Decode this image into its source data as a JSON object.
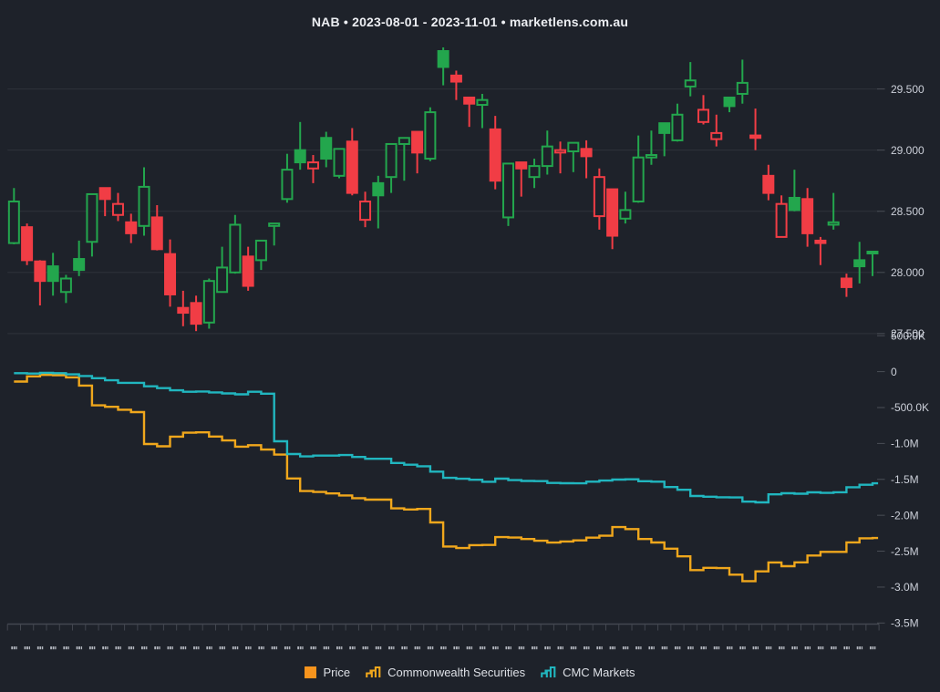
{
  "title": "NAB • 2023-08-01 - 2023-11-01 • marketlens.com.au",
  "colors": {
    "background": "#1e222a",
    "grid": "#2e333b",
    "axis_line": "#434750",
    "axis_text": "#ccd0d9",
    "title_text": "#eceef2",
    "legend_text": "#dde0e6",
    "candle_up": "#23a64d",
    "candle_down": "#f13d45",
    "price_swatch": "#f7941d",
    "cs_line": "#f0a71c",
    "cmc_line": "#21b6bf"
  },
  "legend": {
    "price_label": "Price",
    "cs_label": "Commonwealth Securities",
    "cmc_label": "CMC Markets"
  },
  "chart_data": [
    {
      "type": "candlestick",
      "panel": "price",
      "title": "NAB daily price (hollow = close>open, filled = close<open; green = up vs prev close, red = down)",
      "x": [
        "2023-08-01",
        "2023-08-02",
        "2023-08-03",
        "2023-08-04",
        "2023-08-07",
        "2023-08-08",
        "2023-08-09",
        "2023-08-10",
        "2023-08-11",
        "2023-08-14",
        "2023-08-15",
        "2023-08-16",
        "2023-08-17",
        "2023-08-18",
        "2023-08-21",
        "2023-08-22",
        "2023-08-23",
        "2023-08-24",
        "2023-08-25",
        "2023-08-28",
        "2023-08-29",
        "2023-08-30",
        "2023-08-31",
        "2023-09-01",
        "2023-09-04",
        "2023-09-05",
        "2023-09-06",
        "2023-09-07",
        "2023-09-08",
        "2023-09-11",
        "2023-09-12",
        "2023-09-13",
        "2023-09-14",
        "2023-09-15",
        "2023-09-18",
        "2023-09-19",
        "2023-09-20",
        "2023-09-21",
        "2023-09-22",
        "2023-09-25",
        "2023-09-26",
        "2023-09-27",
        "2023-09-28",
        "2023-09-29",
        "2023-10-02",
        "2023-10-03",
        "2023-10-04",
        "2023-10-05",
        "2023-10-06",
        "2023-10-09",
        "2023-10-10",
        "2023-10-11",
        "2023-10-12",
        "2023-10-13",
        "2023-10-16",
        "2023-10-17",
        "2023-10-18",
        "2023-10-19",
        "2023-10-20",
        "2023-10-23",
        "2023-10-24",
        "2023-10-25",
        "2023-10-26",
        "2023-10-27",
        "2023-10-30",
        "2023-10-31",
        "2023-11-01"
      ],
      "ohlc": [
        [
          28.24,
          28.69,
          28.23,
          28.58
        ],
        [
          28.37,
          28.4,
          28.06,
          28.1
        ],
        [
          28.09,
          28.1,
          27.73,
          27.93
        ],
        [
          28.05,
          28.16,
          27.81,
          27.93
        ],
        [
          27.84,
          27.98,
          27.75,
          27.95
        ],
        [
          28.11,
          28.26,
          27.97,
          28.02
        ],
        [
          28.25,
          28.64,
          28.13,
          28.64
        ],
        [
          28.69,
          28.69,
          28.46,
          28.6
        ],
        [
          28.47,
          28.65,
          28.42,
          28.56
        ],
        [
          28.41,
          28.48,
          28.24,
          28.32
        ],
        [
          28.38,
          28.86,
          28.3,
          28.7
        ],
        [
          28.45,
          28.55,
          28.18,
          28.19
        ],
        [
          28.15,
          28.27,
          27.72,
          27.82
        ],
        [
          27.71,
          27.85,
          27.56,
          27.67
        ],
        [
          27.75,
          27.81,
          27.52,
          27.58
        ],
        [
          27.59,
          27.95,
          27.54,
          27.93
        ],
        [
          27.84,
          28.21,
          27.84,
          28.04
        ],
        [
          28.0,
          28.47,
          27.99,
          28.39
        ],
        [
          28.13,
          28.21,
          27.85,
          27.89
        ],
        [
          28.1,
          28.26,
          28.02,
          28.26
        ],
        [
          28.38,
          28.4,
          28.22,
          28.4
        ],
        [
          28.6,
          28.97,
          28.57,
          28.84
        ],
        [
          29.0,
          29.23,
          28.84,
          28.9
        ],
        [
          28.85,
          28.96,
          28.73,
          28.9
        ],
        [
          29.1,
          29.15,
          28.86,
          28.93
        ],
        [
          28.79,
          29.01,
          28.77,
          29.01
        ],
        [
          29.07,
          29.18,
          28.63,
          28.65
        ],
        [
          28.43,
          28.66,
          28.37,
          28.58
        ],
        [
          28.73,
          28.79,
          28.36,
          28.63
        ],
        [
          28.78,
          29.05,
          28.65,
          29.05
        ],
        [
          29.05,
          29.1,
          28.75,
          29.1
        ],
        [
          29.15,
          29.15,
          28.81,
          28.98
        ],
        [
          28.93,
          29.35,
          28.91,
          29.31
        ],
        [
          29.81,
          29.84,
          29.53,
          29.68
        ],
        [
          29.61,
          29.65,
          29.41,
          29.56
        ],
        [
          29.43,
          29.43,
          29.19,
          29.38
        ],
        [
          29.37,
          29.46,
          29.18,
          29.41
        ],
        [
          29.17,
          29.28,
          28.68,
          28.75
        ],
        [
          28.45,
          28.89,
          28.38,
          28.89
        ],
        [
          28.9,
          28.9,
          28.62,
          28.85
        ],
        [
          28.78,
          28.93,
          28.69,
          28.87
        ],
        [
          28.87,
          29.16,
          28.8,
          29.03
        ],
        [
          28.98,
          29.07,
          28.81,
          29.0
        ],
        [
          28.99,
          29.06,
          28.82,
          29.06
        ],
        [
          29.01,
          29.08,
          28.77,
          28.95
        ],
        [
          28.46,
          28.85,
          28.35,
          28.78
        ],
        [
          28.68,
          28.68,
          28.19,
          28.3
        ],
        [
          28.44,
          28.66,
          28.4,
          28.51
        ],
        [
          28.58,
          29.12,
          28.57,
          28.94
        ],
        [
          28.94,
          29.16,
          28.88,
          28.96
        ],
        [
          29.22,
          29.22,
          28.95,
          29.14
        ],
        [
          29.08,
          29.38,
          29.07,
          29.29
        ],
        [
          29.52,
          29.72,
          29.44,
          29.57
        ],
        [
          29.23,
          29.45,
          29.21,
          29.33
        ],
        [
          29.09,
          29.29,
          29.03,
          29.14
        ],
        [
          29.43,
          29.43,
          29.31,
          29.36
        ],
        [
          29.46,
          29.74,
          29.38,
          29.55
        ],
        [
          29.12,
          29.34,
          29.0,
          29.1
        ],
        [
          28.79,
          28.88,
          28.59,
          28.65
        ],
        [
          28.29,
          28.63,
          28.29,
          28.56
        ],
        [
          28.61,
          28.84,
          28.5,
          28.51
        ],
        [
          28.6,
          28.69,
          28.21,
          28.32
        ],
        [
          28.26,
          28.29,
          28.06,
          28.24
        ],
        [
          28.39,
          28.65,
          28.35,
          28.41
        ],
        [
          27.95,
          27.99,
          27.8,
          27.88
        ],
        [
          28.1,
          28.25,
          27.91,
          28.05
        ],
        [
          28.16,
          28.17,
          27.97,
          28.17
        ]
      ],
      "style": [
        "gh",
        "rs",
        "rs",
        "gs",
        "gh",
        "gs",
        "gh",
        "rs",
        "rh",
        "rs",
        "gh",
        "rs",
        "rs",
        "rs",
        "rs",
        "gh",
        "gh",
        "gh",
        "rs",
        "gh",
        "gh",
        "gh",
        "gs",
        "rh",
        "gs",
        "gh",
        "rs",
        "rh",
        "gs",
        "gh",
        "gh",
        "rs",
        "gh",
        "gs",
        "rs",
        "rs",
        "gh",
        "rs",
        "gh",
        "rs",
        "gh",
        "gh",
        "rh",
        "gh",
        "rs",
        "rh",
        "rs",
        "gh",
        "gh",
        "gh",
        "gs",
        "gh",
        "gh",
        "rh",
        "rh",
        "gs",
        "gh",
        "rs",
        "rs",
        "rh",
        "gs",
        "rs",
        "rs",
        "gh",
        "rs",
        "gs",
        "gh"
      ],
      "ylabel": "",
      "ylim": [
        27.35,
        29.93
      ],
      "yticks": [
        29.5,
        29.0,
        28.5,
        28.0,
        27.5
      ],
      "ytick_labels": [
        "29.500",
        "29.000",
        "28.500",
        "28.000",
        "27.500"
      ],
      "grid": "horizontal"
    },
    {
      "type": "line",
      "panel": "cumulative_net_flow",
      "title": "Cumulative net value traded by broker",
      "x": [
        "2023-08-01",
        "2023-08-02",
        "2023-08-03",
        "2023-08-04",
        "2023-08-07",
        "2023-08-08",
        "2023-08-09",
        "2023-08-10",
        "2023-08-11",
        "2023-08-14",
        "2023-08-15",
        "2023-08-16",
        "2023-08-17",
        "2023-08-18",
        "2023-08-21",
        "2023-08-22",
        "2023-08-23",
        "2023-08-24",
        "2023-08-25",
        "2023-08-28",
        "2023-08-29",
        "2023-08-30",
        "2023-08-31",
        "2023-09-01",
        "2023-09-04",
        "2023-09-05",
        "2023-09-06",
        "2023-09-07",
        "2023-09-08",
        "2023-09-11",
        "2023-09-12",
        "2023-09-13",
        "2023-09-14",
        "2023-09-15",
        "2023-09-18",
        "2023-09-19",
        "2023-09-20",
        "2023-09-21",
        "2023-09-22",
        "2023-09-25",
        "2023-09-26",
        "2023-09-27",
        "2023-09-28",
        "2023-09-29",
        "2023-10-02",
        "2023-10-03",
        "2023-10-04",
        "2023-10-05",
        "2023-10-06",
        "2023-10-09",
        "2023-10-10",
        "2023-10-11",
        "2023-10-12",
        "2023-10-13",
        "2023-10-16",
        "2023-10-17",
        "2023-10-18",
        "2023-10-19",
        "2023-10-20",
        "2023-10-23",
        "2023-10-24",
        "2023-10-25",
        "2023-10-26",
        "2023-10-27",
        "2023-10-30",
        "2023-10-31",
        "2023-11-01"
      ],
      "series": [
        {
          "name": "Commonwealth Securities",
          "color": "#f0a71c",
          "values_millions": [
            -0.138,
            -0.066,
            -0.046,
            -0.05,
            -0.08,
            -0.194,
            -0.47,
            -0.49,
            -0.53,
            -0.564,
            -1.008,
            -1.04,
            -0.905,
            -0.85,
            -0.845,
            -0.904,
            -0.958,
            -1.045,
            -1.025,
            -1.085,
            -1.155,
            -1.488,
            -1.663,
            -1.676,
            -1.696,
            -1.724,
            -1.762,
            -1.782,
            -1.782,
            -1.904,
            -1.919,
            -1.912,
            -2.1,
            -2.434,
            -2.456,
            -2.416,
            -2.413,
            -2.304,
            -2.31,
            -2.33,
            -2.355,
            -2.38,
            -2.365,
            -2.35,
            -2.311,
            -2.285,
            -2.164,
            -2.192,
            -2.33,
            -2.379,
            -2.465,
            -2.572,
            -2.764,
            -2.732,
            -2.735,
            -2.827,
            -2.917,
            -2.781,
            -2.657,
            -2.709,
            -2.655,
            -2.56,
            -2.51,
            -2.51,
            -2.378,
            -2.321,
            -2.316
          ]
        },
        {
          "name": "CMC Markets",
          "color": "#21b6bf",
          "values_millions": [
            -0.021,
            -0.027,
            -0.017,
            -0.021,
            -0.038,
            -0.061,
            -0.091,
            -0.121,
            -0.156,
            -0.156,
            -0.204,
            -0.23,
            -0.26,
            -0.28,
            -0.277,
            -0.29,
            -0.303,
            -0.316,
            -0.28,
            -0.307,
            -0.97,
            -1.148,
            -1.181,
            -1.169,
            -1.169,
            -1.161,
            -1.188,
            -1.214,
            -1.214,
            -1.272,
            -1.296,
            -1.317,
            -1.392,
            -1.479,
            -1.492,
            -1.506,
            -1.533,
            -1.49,
            -1.51,
            -1.522,
            -1.525,
            -1.55,
            -1.554,
            -1.555,
            -1.532,
            -1.517,
            -1.503,
            -1.499,
            -1.526,
            -1.532,
            -1.607,
            -1.645,
            -1.731,
            -1.742,
            -1.749,
            -1.752,
            -1.81,
            -1.82,
            -1.708,
            -1.693,
            -1.7,
            -1.68,
            -1.688,
            -1.679,
            -1.61,
            -1.575,
            -1.555
          ]
        }
      ],
      "step": "after",
      "ylim_millions": [
        -3.6,
        0.55
      ],
      "yticks_millions": [
        0.5,
        0,
        -0.5,
        -1.0,
        -1.5,
        -2.0,
        -2.5,
        -3.0,
        -3.5
      ],
      "ytick_labels": [
        "500.0K",
        "0",
        "-500.0K",
        "-1.0M",
        "-1.5M",
        "-2.0M",
        "-2.5M",
        "-3.0M",
        "-3.5M"
      ],
      "grid": "none"
    }
  ]
}
